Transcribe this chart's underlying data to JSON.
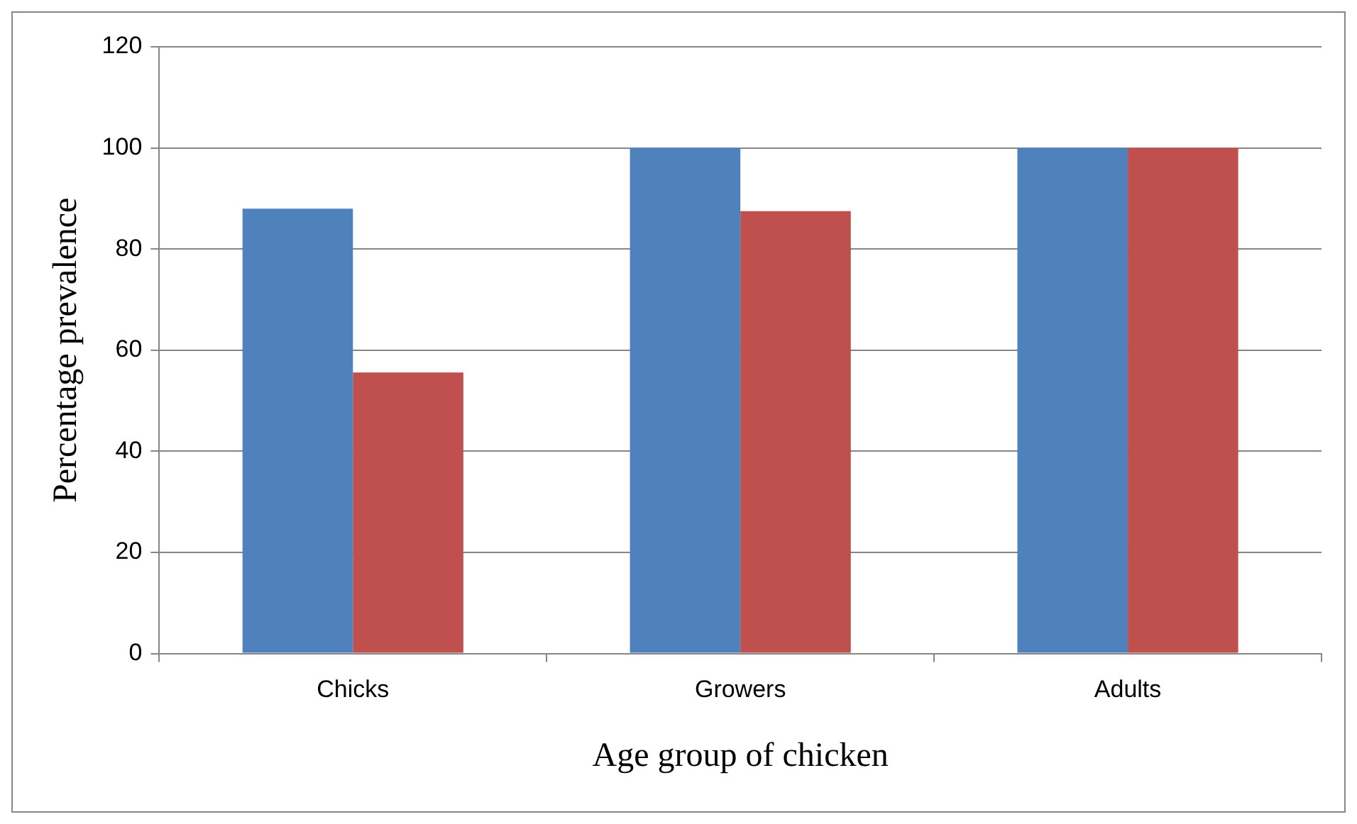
{
  "chart_data": {
    "type": "bar",
    "xlabel": "Age group of chicken",
    "ylabel": "Percentage prevalence",
    "categories": [
      "Chicks",
      "Growers",
      "Adults"
    ],
    "series": [
      {
        "color": "#4f81bd",
        "values": [
          88,
          100,
          100
        ]
      },
      {
        "color": "#c0504d",
        "values": [
          55.6,
          87.5,
          100
        ]
      }
    ],
    "ylim": [
      0,
      120
    ],
    "yticks": [
      0,
      20,
      40,
      60,
      80,
      100,
      120
    ],
    "grid": "y",
    "legend": false
  }
}
